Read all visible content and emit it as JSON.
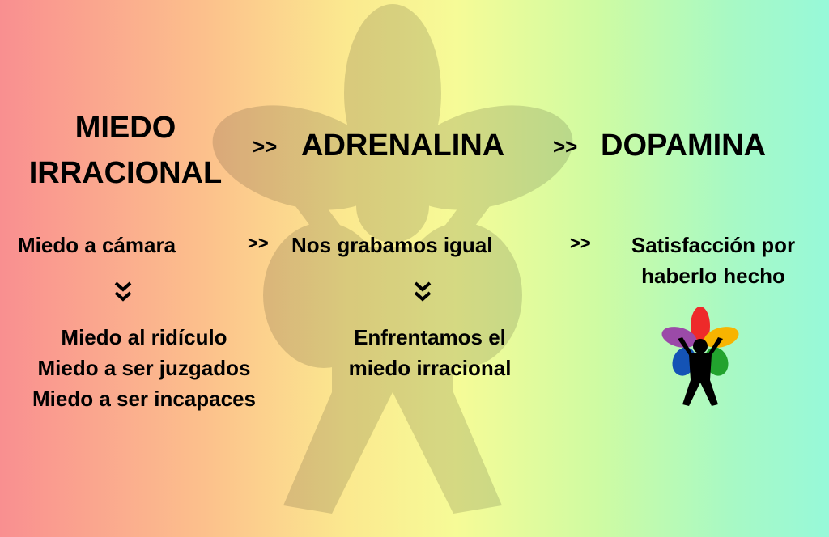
{
  "row1": {
    "fear": "MIEDO IRRACIONAL",
    "adrenaline": "ADRENALINA",
    "dopamine": "DOPAMINA",
    "arrow": ">>"
  },
  "row2": {
    "fear": "Miedo a cámara",
    "adrenaline": "Nos grabamos igual",
    "dopamine_line1": "Satisfacción por",
    "dopamine_line2": "haberlo hecho",
    "arrow": ">>"
  },
  "fears": [
    "Miedo al ridículo",
    "Miedo a ser juzgados",
    "Miedo a ser incapaces"
  ],
  "confront": [
    "Enfrentamos el",
    "miedo irracional"
  ],
  "colors": {
    "red": "#ee2a2a",
    "orange": "#f7b400",
    "purple": "#9b4aa8",
    "blue": "#1453b5",
    "green": "#22a32e",
    "figure": "#000000"
  }
}
